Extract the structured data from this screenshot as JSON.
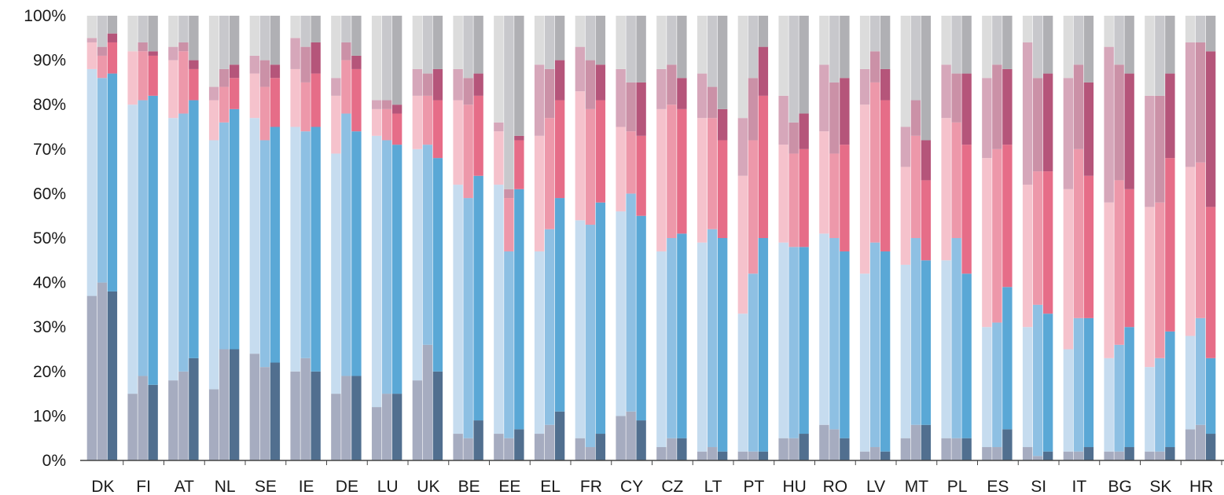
{
  "chart_data": {
    "type": "bar",
    "stacked": true,
    "bars_per_category": 3,
    "ylim": [
      0,
      100
    ],
    "yticks": [
      "0%",
      "10%",
      "20%",
      "30%",
      "40%",
      "50%",
      "60%",
      "70%",
      "80%",
      "90%",
      "100%"
    ],
    "categories": [
      "DK",
      "FI",
      "AT",
      "NL",
      "SE",
      "IE",
      "DE",
      "LU",
      "UK",
      "BE",
      "EE",
      "EL",
      "FR",
      "CY",
      "CZ",
      "LT",
      "PT",
      "HU",
      "RO",
      "LV",
      "MT",
      "PL",
      "ES",
      "SI",
      "IT",
      "BG",
      "SK",
      "HR"
    ],
    "segment_colors": [
      [
        "#a6acc0",
        "#c6dcef",
        "#f5c2cc",
        "#d6a7ba",
        "#dcdcdc"
      ],
      [
        "#a6acc0",
        "#8ec0e3",
        "#ed98aa",
        "#cb91a7",
        "#c8c8cc"
      ],
      [
        "#516f8f",
        "#5aa8d6",
        "#e66d88",
        "#b5557a",
        "#b0b0b4"
      ]
    ],
    "data": [
      [
        [
          37,
          88,
          94,
          95,
          100
        ],
        [
          40,
          86,
          91,
          93,
          100
        ],
        [
          38,
          87,
          94,
          96,
          100
        ]
      ],
      [
        [
          15,
          80,
          92,
          92,
          100
        ],
        [
          19,
          81,
          92,
          94,
          100
        ],
        [
          17,
          82,
          91,
          92,
          100
        ]
      ],
      [
        [
          18,
          77,
          90,
          93,
          100
        ],
        [
          20,
          78,
          92,
          94,
          100
        ],
        [
          23,
          81,
          88,
          90,
          100
        ]
      ],
      [
        [
          16,
          72,
          81,
          84,
          100
        ],
        [
          25,
          76,
          84,
          88,
          100
        ],
        [
          25,
          79,
          86,
          89,
          100
        ]
      ],
      [
        [
          24,
          77,
          87,
          91,
          100
        ],
        [
          21,
          72,
          84,
          90,
          100
        ],
        [
          22,
          75,
          86,
          89,
          100
        ]
      ],
      [
        [
          20,
          75,
          88,
          95,
          100
        ],
        [
          23,
          74,
          85,
          93,
          100
        ],
        [
          20,
          75,
          87,
          94,
          100
        ]
      ],
      [
        [
          15,
          69,
          82,
          86,
          100
        ],
        [
          19,
          78,
          90,
          94,
          100
        ],
        [
          19,
          74,
          88,
          91,
          100
        ]
      ],
      [
        [
          12,
          73,
          79,
          81,
          100
        ],
        [
          15,
          72,
          79,
          81,
          100
        ],
        [
          15,
          71,
          78,
          80,
          100
        ]
      ],
      [
        [
          18,
          70,
          82,
          88,
          100
        ],
        [
          26,
          71,
          82,
          87,
          100
        ],
        [
          20,
          68,
          81,
          88,
          100
        ]
      ],
      [
        [
          6,
          62,
          81,
          88,
          100
        ],
        [
          5,
          59,
          80,
          86,
          100
        ],
        [
          9,
          64,
          82,
          87,
          100
        ]
      ],
      [
        [
          6,
          62,
          74,
          76,
          100
        ],
        [
          5,
          47,
          59,
          61,
          100
        ],
        [
          7,
          61,
          72,
          73,
          100
        ]
      ],
      [
        [
          6,
          47,
          73,
          89,
          100
        ],
        [
          8,
          52,
          77,
          88,
          100
        ],
        [
          11,
          59,
          81,
          90,
          100
        ]
      ],
      [
        [
          5,
          54,
          83,
          93,
          100
        ],
        [
          3,
          53,
          79,
          90,
          100
        ],
        [
          6,
          58,
          81,
          89,
          100
        ]
      ],
      [
        [
          10,
          56,
          75,
          88,
          100
        ],
        [
          11,
          60,
          74,
          85,
          100
        ],
        [
          9,
          55,
          73,
          85,
          100
        ]
      ],
      [
        [
          3,
          47,
          79,
          88,
          100
        ],
        [
          5,
          50,
          80,
          89,
          100
        ],
        [
          5,
          51,
          79,
          86,
          100
        ]
      ],
      [
        [
          2,
          49,
          77,
          87,
          100
        ],
        [
          3,
          52,
          77,
          84,
          100
        ],
        [
          2,
          50,
          72,
          79,
          100
        ]
      ],
      [
        [
          2,
          33,
          64,
          77,
          100
        ],
        [
          2,
          42,
          72,
          86,
          100
        ],
        [
          2,
          50,
          82,
          93,
          100
        ]
      ],
      [
        [
          5,
          49,
          71,
          82,
          100
        ],
        [
          5,
          48,
          69,
          76,
          100
        ],
        [
          6,
          48,
          70,
          78,
          100
        ]
      ],
      [
        [
          8,
          51,
          74,
          89,
          100
        ],
        [
          7,
          50,
          69,
          85,
          100
        ],
        [
          5,
          47,
          71,
          86,
          100
        ]
      ],
      [
        [
          2,
          42,
          80,
          88,
          100
        ],
        [
          3,
          49,
          85,
          92,
          100
        ],
        [
          2,
          47,
          81,
          88,
          100
        ]
      ],
      [
        [
          5,
          44,
          66,
          75,
          100
        ],
        [
          8,
          50,
          73,
          81,
          100
        ],
        [
          8,
          45,
          63,
          72,
          100
        ]
      ],
      [
        [
          5,
          45,
          77,
          89,
          100
        ],
        [
          5,
          50,
          76,
          87,
          100
        ],
        [
          5,
          42,
          71,
          87,
          100
        ]
      ],
      [
        [
          3,
          30,
          68,
          86,
          100
        ],
        [
          3,
          31,
          70,
          89,
          100
        ],
        [
          7,
          39,
          71,
          88,
          100
        ]
      ],
      [
        [
          3,
          30,
          62,
          94,
          100
        ],
        [
          1,
          35,
          65,
          86,
          100
        ],
        [
          2,
          33,
          65,
          87,
          100
        ]
      ],
      [
        [
          2,
          25,
          61,
          86,
          100
        ],
        [
          2,
          32,
          70,
          89,
          100
        ],
        [
          3,
          32,
          64,
          85,
          100
        ]
      ],
      [
        [
          2,
          23,
          58,
          93,
          100
        ],
        [
          2,
          26,
          63,
          89,
          100
        ],
        [
          3,
          30,
          61,
          87,
          100
        ]
      ],
      [
        [
          2,
          21,
          57,
          82,
          100
        ],
        [
          2,
          23,
          58,
          82,
          100
        ],
        [
          3,
          29,
          68,
          87,
          100
        ]
      ],
      [
        [
          7,
          28,
          66,
          94,
          100
        ],
        [
          8,
          32,
          67,
          94,
          100
        ],
        [
          6,
          23,
          57,
          92,
          100
        ]
      ]
    ]
  }
}
